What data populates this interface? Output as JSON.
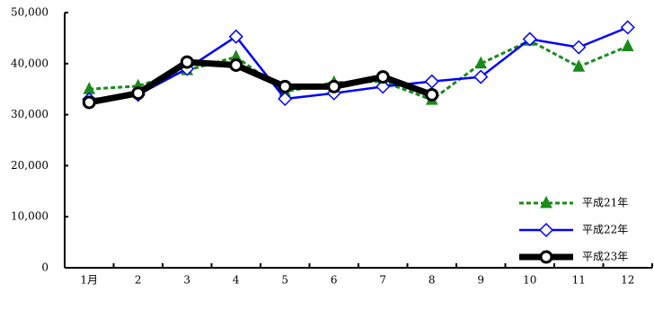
{
  "chart_data": {
    "type": "line",
    "categories": [
      "1月",
      "2",
      "3",
      "4",
      "5",
      "6",
      "7",
      "8",
      "9",
      "10",
      "11",
      "12"
    ],
    "series": [
      {
        "name": "平成21年",
        "color": "#1a8a1a",
        "marker": "triangle",
        "dash": true,
        "values": [
          35000,
          35600,
          38700,
          41300,
          34500,
          36300,
          36500,
          32900,
          40000,
          44500,
          39400,
          43400
        ]
      },
      {
        "name": "平成22年",
        "color": "#0000ff",
        "marker": "diamond",
        "dash": false,
        "values": [
          33000,
          33900,
          39000,
          45300,
          33100,
          34200,
          35500,
          36500,
          37400,
          44800,
          43200,
          47100
        ]
      },
      {
        "name": "平成23年",
        "color": "#000000",
        "marker": "circle",
        "dash": false,
        "values": [
          32400,
          34200,
          40300,
          39700,
          35500,
          35500,
          37400,
          33900,
          null,
          null,
          null,
          null
        ]
      }
    ],
    "ylim": [
      0,
      50000
    ],
    "yticks": [
      0,
      {
        "value": 10000,
        "label": "10,000"
      },
      {
        "value": 20000,
        "label": "20,000"
      },
      {
        "value": 30000,
        "label": "30,000"
      },
      {
        "value": 40000,
        "label": "40,000"
      },
      {
        "value": 50000,
        "label": "50,000"
      }
    ],
    "grid": false,
    "legend": "lower right"
  }
}
